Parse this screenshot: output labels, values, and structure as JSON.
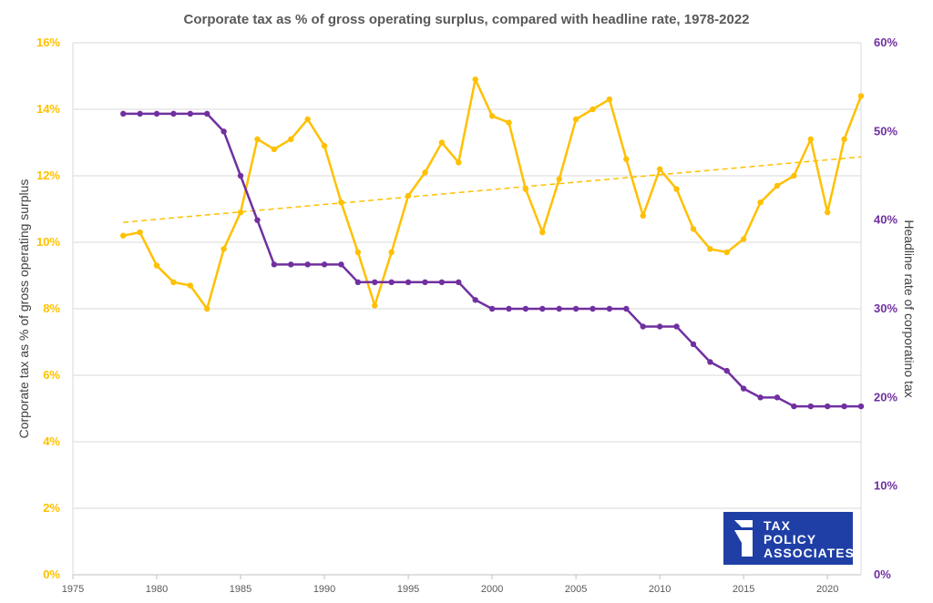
{
  "chart_data": {
    "type": "line",
    "title": "Corporate tax as % of gross operating surplus, compared with headline rate, 1978-2022",
    "ylabel_left": "Corporate tax as % of gross operating surplus",
    "ylabel_right": "Headline rate of corporatino tax",
    "xlim": [
      1975,
      2022
    ],
    "x_ticks": [
      "1975",
      "1980",
      "1985",
      "1990",
      "1995",
      "2000",
      "2005",
      "2010",
      "2015",
      "2020"
    ],
    "ylim_left": [
      0,
      16
    ],
    "ylim_right": [
      0,
      60
    ],
    "y_ticks_left": [
      "0%",
      "2%",
      "4%",
      "6%",
      "8%",
      "10%",
      "12%",
      "14%",
      "16%"
    ],
    "y_ticks_right": [
      "0%",
      "10%",
      "20%",
      "30%",
      "40%",
      "50%",
      "60%"
    ],
    "grid": "horizontal",
    "colors": {
      "effective": "#FFC000",
      "headline": "#7030A0",
      "logo_bg": "#1F3FA6"
    },
    "x": [
      1978,
      1979,
      1980,
      1981,
      1982,
      1983,
      1984,
      1985,
      1986,
      1987,
      1988,
      1989,
      1990,
      1991,
      1992,
      1993,
      1994,
      1995,
      1996,
      1997,
      1998,
      1999,
      2000,
      2001,
      2002,
      2003,
      2004,
      2005,
      2006,
      2007,
      2008,
      2009,
      2010,
      2011,
      2012,
      2013,
      2014,
      2015,
      2016,
      2017,
      2018,
      2019,
      2020,
      2021,
      2022
    ],
    "series": [
      {
        "axis": "left",
        "values": [
          10.2,
          10.3,
          9.3,
          8.8,
          8.7,
          8.0,
          9.8,
          10.9,
          13.1,
          12.8,
          13.1,
          13.7,
          12.9,
          11.2,
          9.7,
          8.1,
          9.7,
          11.4,
          12.1,
          13.0,
          12.4,
          14.9,
          13.8,
          13.6,
          11.6,
          10.3,
          11.9,
          13.7,
          14.0,
          14.3,
          12.5,
          10.8,
          12.2,
          11.6,
          10.4,
          9.8,
          9.7,
          10.1,
          11.2,
          11.7,
          12.0,
          13.1,
          10.9,
          13.1,
          14.4
        ]
      },
      {
        "axis": "right",
        "values": [
          52,
          52,
          52,
          52,
          52,
          52,
          50,
          45,
          40,
          35,
          35,
          35,
          35,
          35,
          33,
          33,
          33,
          33,
          33,
          33,
          33,
          31,
          30,
          30,
          30,
          30,
          30,
          30,
          30,
          30,
          30,
          28,
          28,
          28,
          26,
          24,
          23,
          21,
          20,
          20,
          19,
          19,
          19,
          19,
          19
        ]
      }
    ],
    "trendline": {
      "series": 0,
      "start": [
        1978,
        10.6
      ],
      "end": [
        2022,
        12.57
      ]
    }
  },
  "logo": {
    "line1": "TAX",
    "line2": "POLICY",
    "line3": "ASSOCIATES"
  }
}
